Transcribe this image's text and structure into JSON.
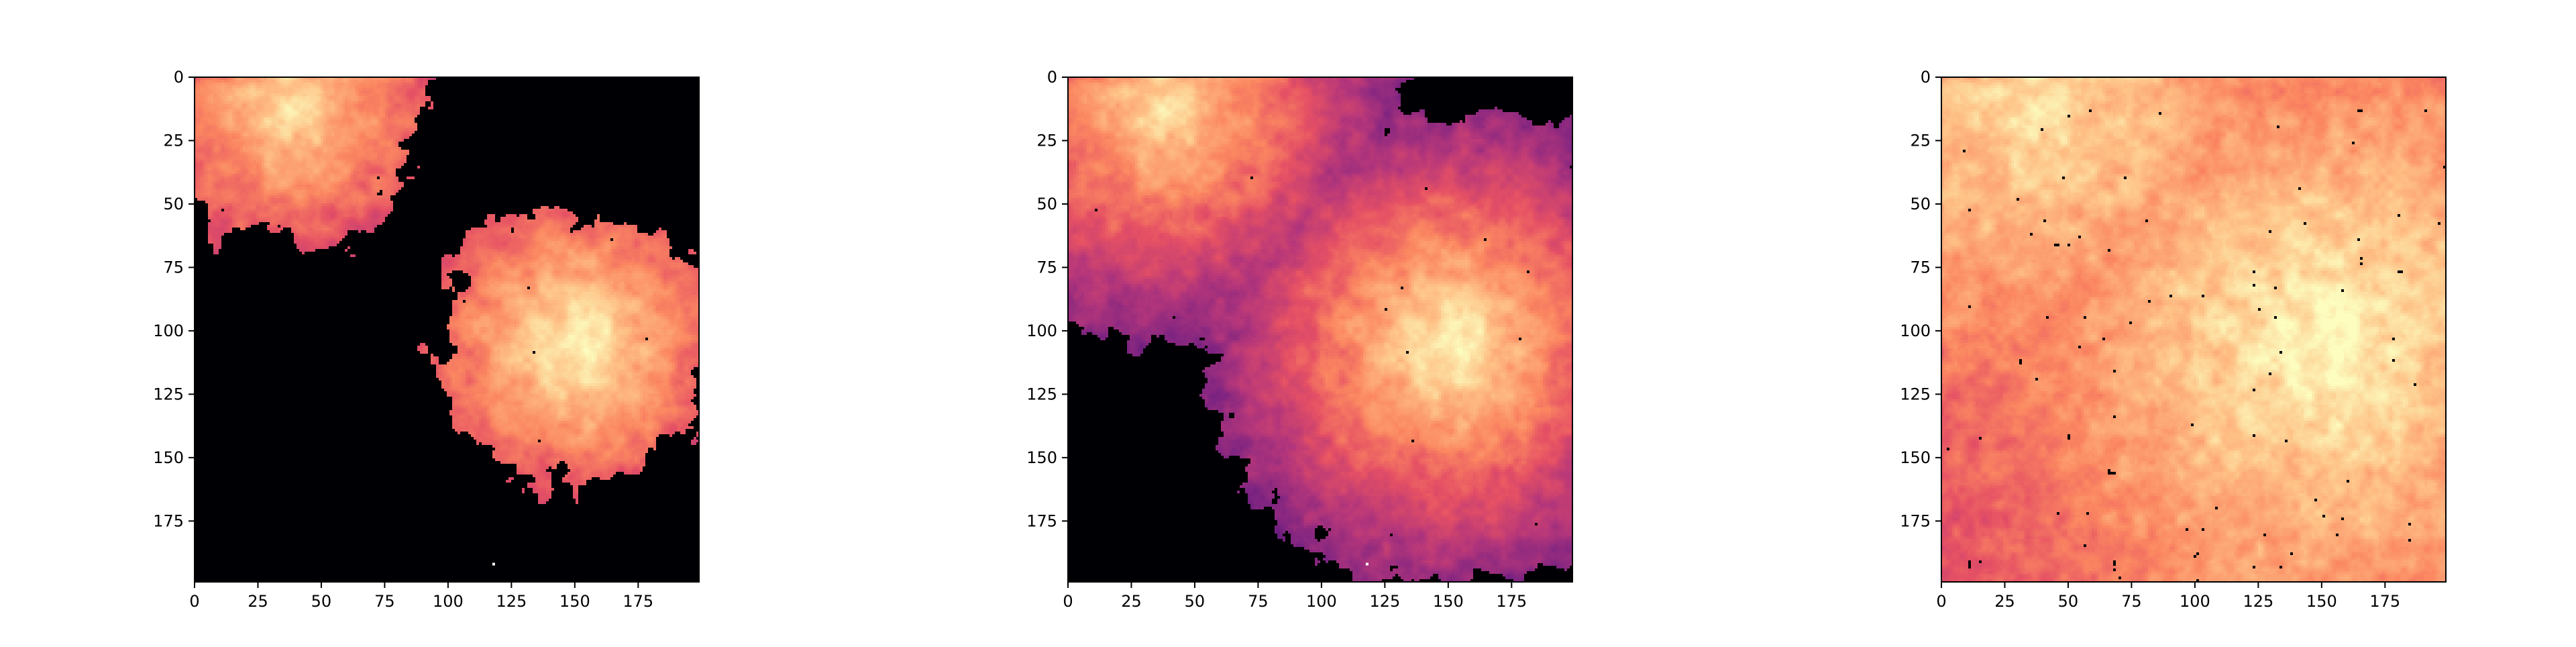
{
  "figure": {
    "background": "#ffffff",
    "colormap": "magma",
    "masked_color": "#000000"
  },
  "chart_data": [
    {
      "type": "heatmap",
      "grid_size": [
        200,
        200
      ],
      "xlim": [
        0,
        199
      ],
      "ylim": [
        199,
        0
      ],
      "xticks": [
        0,
        25,
        50,
        75,
        100,
        125,
        150,
        175
      ],
      "yticks": [
        0,
        25,
        50,
        75,
        100,
        125,
        150,
        175
      ],
      "tick_labels_x": [
        "0",
        "25",
        "50",
        "75",
        "100",
        "125",
        "150",
        "175"
      ],
      "tick_labels_y": [
        "0",
        "25",
        "50",
        "75",
        "100",
        "125",
        "150",
        "175"
      ],
      "sources": [
        {
          "x": 38,
          "y": 12,
          "peak": 0.95
        },
        {
          "x": 150,
          "y": 106,
          "peak": 1.0
        }
      ],
      "region_radius": 55,
      "hole_density": 0.06,
      "marker": {
        "x": 118,
        "y": 192
      }
    },
    {
      "type": "heatmap",
      "grid_size": [
        200,
        200
      ],
      "xlim": [
        0,
        199
      ],
      "ylim": [
        199,
        0
      ],
      "xticks": [
        0,
        25,
        50,
        75,
        100,
        125,
        150,
        175
      ],
      "yticks": [
        0,
        25,
        50,
        75,
        100,
        125,
        150,
        175
      ],
      "tick_labels_x": [
        "0",
        "25",
        "50",
        "75",
        "100",
        "125",
        "150",
        "175"
      ],
      "tick_labels_y": [
        "0",
        "25",
        "50",
        "75",
        "100",
        "125",
        "150",
        "175"
      ],
      "sources": [
        {
          "x": 38,
          "y": 12,
          "peak": 0.95
        },
        {
          "x": 150,
          "y": 106,
          "peak": 1.0
        }
      ],
      "region_radius": 95,
      "hole_density": 0.07,
      "marker": {
        "x": 118,
        "y": 192
      }
    },
    {
      "type": "heatmap",
      "grid_size": [
        200,
        200
      ],
      "xlim": [
        0,
        199
      ],
      "ylim": [
        199,
        0
      ],
      "xticks": [
        0,
        25,
        50,
        75,
        100,
        125,
        150,
        175
      ],
      "yticks": [
        0,
        25,
        50,
        75,
        100,
        125,
        150,
        175
      ],
      "tick_labels_x": [
        "0",
        "25",
        "50",
        "75",
        "100",
        "125",
        "150",
        "175"
      ],
      "tick_labels_y": [
        "0",
        "25",
        "50",
        "75",
        "100",
        "125",
        "150",
        "175"
      ],
      "sources": [
        {
          "x": 38,
          "y": 12,
          "peak": 0.95
        },
        {
          "x": 150,
          "y": 106,
          "peak": 1.0
        }
      ],
      "region_radius": 400,
      "hole_density": 0.09,
      "marker": null
    }
  ]
}
